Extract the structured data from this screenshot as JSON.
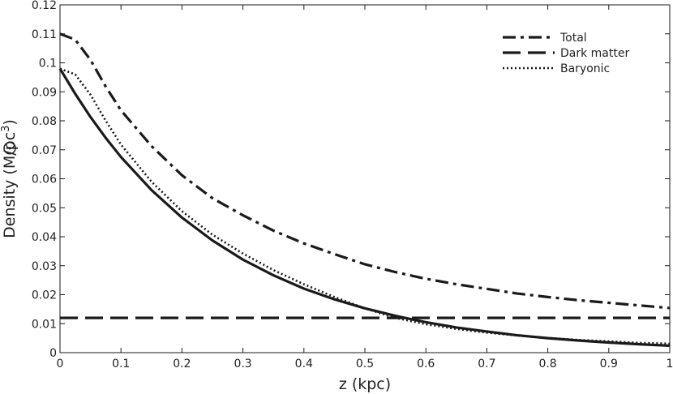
{
  "chart_data": {
    "type": "line",
    "title": "",
    "xlabel": "z (kpc)",
    "ylabel_parts": [
      "Density (M",
      "/pc",
      "3",
      ")"
    ],
    "ylabel_symbol": "sun-symbol",
    "xlim": [
      0,
      1
    ],
    "ylim": [
      0,
      0.12
    ],
    "x_ticks": [
      0,
      0.1,
      0.2,
      0.3,
      0.4,
      0.5,
      0.6,
      0.7,
      0.8,
      0.9,
      1
    ],
    "x_tick_labels": [
      "0",
      "0.1",
      "0.2",
      "0.3",
      "0.4",
      "0.5",
      "0.6",
      "0.7",
      "0.8",
      "0.9",
      "1"
    ],
    "y_ticks": [
      0,
      0.01,
      0.02,
      0.03,
      0.04,
      0.05,
      0.06,
      0.07,
      0.08,
      0.09,
      0.1,
      0.11,
      0.12
    ],
    "y_tick_labels": [
      "0",
      "0.01",
      "0.02",
      "0.03",
      "0.04",
      "0.05",
      "0.06",
      "0.07",
      "0.08",
      "0.09",
      "0.1",
      "0.11",
      "0.12"
    ],
    "grid": false,
    "legend_position": "top-right",
    "color": "#1a1a1a",
    "series": [
      {
        "name": "Total",
        "style": "dashdot",
        "x": [
          0,
          0.025,
          0.05,
          0.075,
          0.1,
          0.15,
          0.2,
          0.25,
          0.3,
          0.35,
          0.4,
          0.45,
          0.5,
          0.55,
          0.6,
          0.65,
          0.7,
          0.75,
          0.8,
          0.85,
          0.9,
          0.95,
          1
        ],
        "y": [
          0.11,
          0.108,
          0.101,
          0.0918,
          0.0836,
          0.0713,
          0.0612,
          0.0533,
          0.0474,
          0.0421,
          0.0377,
          0.034,
          0.0305,
          0.0278,
          0.0255,
          0.0236,
          0.022,
          0.0204,
          0.0192,
          0.0181,
          0.0172,
          0.0163,
          0.0154
        ]
      },
      {
        "name": "Dark matter",
        "style": "dashed",
        "x": [
          0,
          1
        ],
        "y": [
          0.012,
          0.012
        ]
      },
      {
        "name": "Baryonic",
        "style": "dotted",
        "x": [
          0,
          0.025,
          0.05,
          0.075,
          0.1,
          0.15,
          0.2,
          0.25,
          0.3,
          0.35,
          0.4,
          0.45,
          0.5,
          0.55,
          0.6,
          0.65,
          0.7,
          0.75,
          0.8,
          0.85,
          0.9,
          0.95,
          1
        ],
        "y": [
          0.098,
          0.096,
          0.089,
          0.08,
          0.0718,
          0.059,
          0.0488,
          0.0407,
          0.0342,
          0.0285,
          0.0236,
          0.0192,
          0.0153,
          0.012,
          0.0098,
          0.0082,
          0.0069,
          0.0059,
          0.0051,
          0.0044,
          0.0039,
          0.0034,
          0.0031
        ]
      },
      {
        "name": "",
        "style": "solid",
        "x": [
          0,
          0.025,
          0.05,
          0.075,
          0.1,
          0.15,
          0.2,
          0.25,
          0.3,
          0.35,
          0.4,
          0.45,
          0.5,
          0.55,
          0.6,
          0.65,
          0.7,
          0.75,
          0.8,
          0.85,
          0.9,
          0.95,
          1
        ],
        "y": [
          0.098,
          0.0893,
          0.0813,
          0.0741,
          0.0675,
          0.0561,
          0.0466,
          0.0387,
          0.0321,
          0.0267,
          0.0221,
          0.0184,
          0.0153,
          0.0127,
          0.0105,
          0.0087,
          0.0073,
          0.006,
          0.005,
          0.0042,
          0.0035,
          0.0029,
          0.0024
        ]
      }
    ]
  }
}
